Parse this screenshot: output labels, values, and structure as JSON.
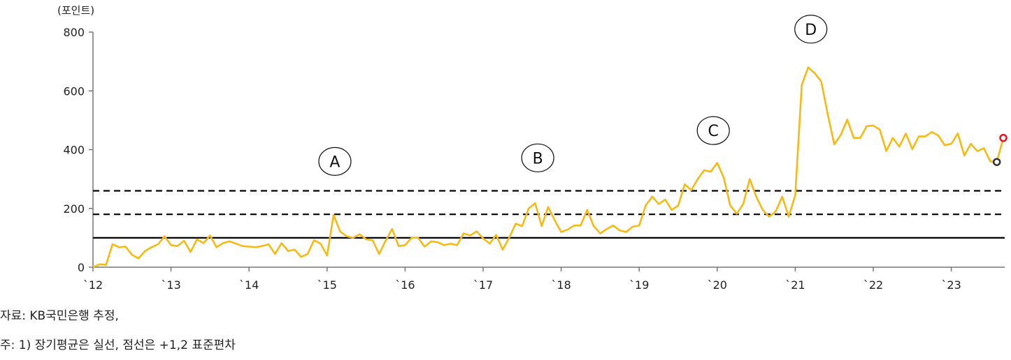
{
  "chart_data": {
    "type": "line",
    "yunit": "(포인트)",
    "ylim": [
      0,
      800
    ],
    "yticks": [
      0,
      200,
      400,
      600,
      800
    ],
    "xlim": [
      2012,
      2023.75
    ],
    "xticks": [
      {
        "v": 2012,
        "label": "`12"
      },
      {
        "v": 2013,
        "label": "`13"
      },
      {
        "v": 2014,
        "label": "`14"
      },
      {
        "v": 2015,
        "label": "`15"
      },
      {
        "v": 2016,
        "label": "`16"
      },
      {
        "v": 2017,
        "label": "`17"
      },
      {
        "v": 2018,
        "label": "`18"
      },
      {
        "v": 2019,
        "label": "`19"
      },
      {
        "v": 2020,
        "label": "`20"
      },
      {
        "v": 2021,
        "label": "`21"
      },
      {
        "v": 2022,
        "label": "`22"
      },
      {
        "v": 2023,
        "label": "`23"
      }
    ],
    "start": "2012-01",
    "frequency": "monthly",
    "color": "#F5BA14",
    "values": [
      0,
      10,
      8,
      78,
      68,
      70,
      42,
      30,
      55,
      68,
      78,
      105,
      75,
      72,
      90,
      52,
      95,
      82,
      108,
      68,
      82,
      88,
      80,
      72,
      70,
      68,
      72,
      78,
      45,
      82,
      55,
      60,
      35,
      45,
      92,
      80,
      40,
      178,
      122,
      105,
      100,
      112,
      95,
      92,
      45,
      90,
      130,
      72,
      75,
      100,
      100,
      70,
      88,
      85,
      75,
      80,
      75,
      115,
      108,
      122,
      98,
      80,
      110,
      60,
      100,
      148,
      140,
      200,
      218,
      140,
      205,
      160,
      120,
      128,
      142,
      142,
      195,
      140,
      115,
      130,
      142,
      125,
      120,
      138,
      142,
      210,
      240,
      215,
      230,
      195,
      210,
      282,
      262,
      300,
      330,
      325,
      355,
      305,
      210,
      182,
      215,
      300,
      240,
      195,
      172,
      190,
      240,
      172,
      245,
      620,
      680,
      660,
      632,
      520,
      418,
      450,
      502,
      440,
      440,
      480,
      482,
      468,
      395,
      440,
      410,
      455,
      402,
      445,
      445,
      460,
      448,
      415,
      420,
      455,
      380,
      420,
      395,
      405,
      360,
      358,
      440
    ],
    "reference_lines": [
      {
        "value": 100,
        "style": "solid",
        "color": "#000000"
      },
      {
        "value": 180,
        "style": "dashed",
        "color": "#000000"
      },
      {
        "value": 260,
        "style": "dashed",
        "color": "#000000"
      }
    ],
    "markers": [
      {
        "index": 139,
        "color": "#333333"
      },
      {
        "index": 140,
        "color": "#E8141E"
      }
    ],
    "annotations": [
      {
        "label": "A",
        "x": 2015.1,
        "y": 360
      },
      {
        "label": "B",
        "x": 2017.7,
        "y": 372
      },
      {
        "label": "C",
        "x": 2019.95,
        "y": 465
      },
      {
        "label": "D",
        "x": 2021.2,
        "y": 810
      }
    ]
  },
  "notes": {
    "source": "자료: KB국민은행 추정,",
    "footnote": "주: 1) 장기평균은 실선, 점선은 +1,2 표준편차"
  }
}
